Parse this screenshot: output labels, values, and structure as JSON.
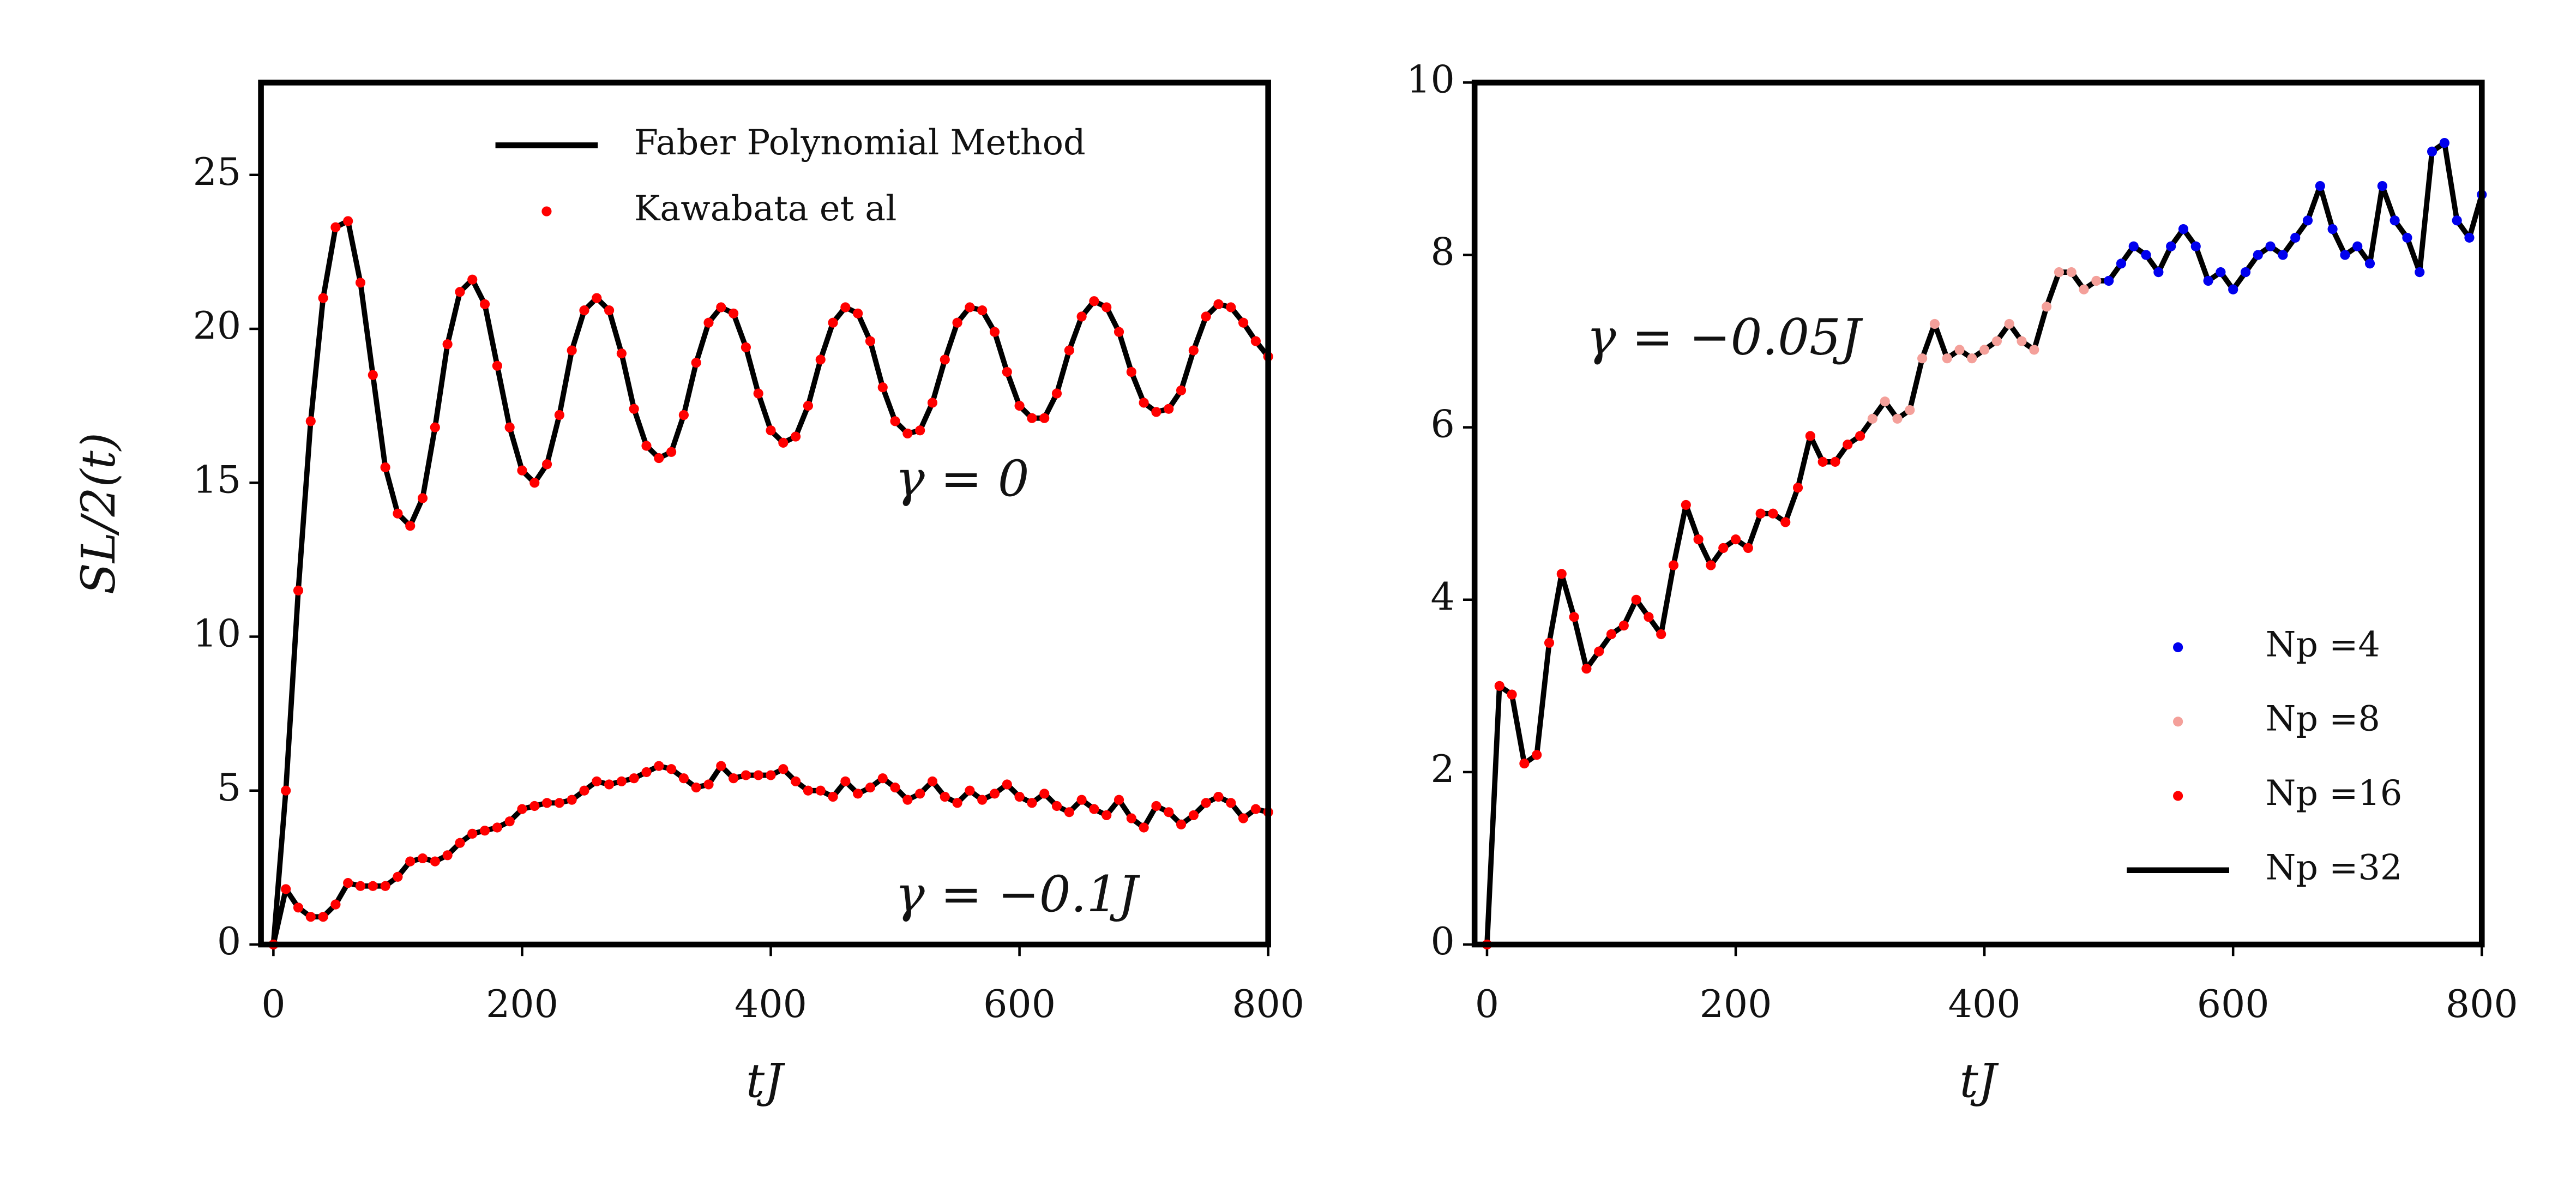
{
  "chart_data": [
    {
      "type": "line",
      "ylabel": "SL/2(t)",
      "xlabel": "tJ",
      "xlim": [
        -10,
        800
      ],
      "ylim": [
        0,
        28
      ],
      "xticks": [
        0,
        200,
        400,
        600,
        800
      ],
      "yticks": [
        0,
        5,
        10,
        15,
        20,
        25
      ],
      "legend": "upper right",
      "annotations": [
        {
          "text": "γ = 0",
          "x": 500,
          "y": 15
        },
        {
          "text": "γ = −0.1J",
          "x": 500,
          "y": 1.5
        }
      ],
      "x": [
        0,
        10,
        20,
        30,
        40,
        50,
        60,
        70,
        80,
        90,
        100,
        110,
        120,
        130,
        140,
        150,
        160,
        170,
        180,
        190,
        200,
        210,
        220,
        230,
        240,
        250,
        260,
        270,
        280,
        290,
        300,
        310,
        320,
        330,
        340,
        350,
        360,
        370,
        380,
        390,
        400,
        410,
        420,
        430,
        440,
        450,
        460,
        470,
        480,
        490,
        500,
        510,
        520,
        530,
        540,
        550,
        560,
        570,
        580,
        590,
        600,
        610,
        620,
        630,
        640,
        650,
        660,
        670,
        680,
        690,
        700,
        710,
        720,
        730,
        740,
        750,
        760,
        770,
        780,
        790,
        800
      ],
      "series": [
        {
          "name": "Faber Polynomial Method",
          "color": "#000000",
          "style": "line",
          "values": [
            0,
            5,
            11.5,
            17,
            21,
            23.3,
            23.5,
            21.5,
            18.5,
            15.5,
            14,
            13.6,
            14.5,
            16.8,
            19.5,
            21.2,
            21.6,
            20.8,
            18.8,
            16.8,
            15.4,
            15.0,
            15.6,
            17.2,
            19.3,
            20.6,
            21.0,
            20.6,
            19.2,
            17.4,
            16.2,
            15.8,
            16.0,
            17.2,
            18.9,
            20.2,
            20.7,
            20.5,
            19.4,
            17.9,
            16.7,
            16.3,
            16.5,
            17.5,
            19.0,
            20.2,
            20.7,
            20.5,
            19.6,
            18.1,
            17.0,
            16.6,
            16.7,
            17.6,
            19.0,
            20.2,
            20.7,
            20.6,
            19.9,
            18.6,
            17.5,
            17.1,
            17.1,
            17.9,
            19.3,
            20.4,
            20.9,
            20.7,
            19.9,
            18.6,
            17.6,
            17.3,
            17.4,
            18.0,
            19.3,
            20.4,
            20.8,
            20.7,
            20.2,
            19.6,
            19.1
          ]
        },
        {
          "color": "#000000",
          "style": "line",
          "values": [
            0,
            1.8,
            1.2,
            0.9,
            0.9,
            1.3,
            2.0,
            1.9,
            1.9,
            1.9,
            2.2,
            2.7,
            2.8,
            2.7,
            2.9,
            3.3,
            3.6,
            3.7,
            3.8,
            4.0,
            4.4,
            4.5,
            4.6,
            4.6,
            4.7,
            5.0,
            5.3,
            5.2,
            5.3,
            5.4,
            5.6,
            5.8,
            5.7,
            5.4,
            5.1,
            5.2,
            5.8,
            5.4,
            5.5,
            5.5,
            5.5,
            5.7,
            5.3,
            5.0,
            5.0,
            4.8,
            5.3,
            4.9,
            5.1,
            5.4,
            5.1,
            4.7,
            4.9,
            5.3,
            4.8,
            4.6,
            5.0,
            4.7,
            4.9,
            5.2,
            4.8,
            4.6,
            4.9,
            4.5,
            4.3,
            4.7,
            4.4,
            4.2,
            4.7,
            4.1,
            3.8,
            4.5,
            4.3,
            3.9,
            4.2,
            4.6,
            4.8,
            4.6,
            4.1,
            4.4,
            4.3
          ]
        },
        {
          "name": "Kawabata et al",
          "color": "#ff0000",
          "style": "dots",
          "values": [
            0,
            5,
            11.5,
            17,
            21,
            23.3,
            23.5,
            21.5,
            18.5,
            15.5,
            14,
            13.6,
            14.5,
            16.8,
            19.5,
            21.2,
            21.6,
            20.8,
            18.8,
            16.8,
            15.4,
            15.0,
            15.6,
            17.2,
            19.3,
            20.6,
            21.0,
            20.6,
            19.2,
            17.4,
            16.2,
            15.8,
            16.0,
            17.2,
            18.9,
            20.2,
            20.7,
            20.5,
            19.4,
            17.9,
            16.7,
            16.3,
            16.5,
            17.5,
            19.0,
            20.2,
            20.7,
            20.5,
            19.6,
            18.1,
            17.0,
            16.6,
            16.7,
            17.6,
            19.0,
            20.2,
            20.7,
            20.6,
            19.9,
            18.6,
            17.5,
            17.1,
            17.1,
            17.9,
            19.3,
            20.4,
            20.9,
            20.7,
            19.9,
            18.6,
            17.6,
            17.3,
            17.4,
            18.0,
            19.3,
            20.4,
            20.8,
            20.7,
            20.2,
            19.6,
            19.1
          ]
        },
        {
          "color": "#ff0000",
          "style": "dots",
          "values": [
            0,
            1.8,
            1.2,
            0.9,
            0.9,
            1.3,
            2.0,
            1.9,
            1.9,
            1.9,
            2.2,
            2.7,
            2.8,
            2.7,
            2.9,
            3.3,
            3.6,
            3.7,
            3.8,
            4.0,
            4.4,
            4.5,
            4.6,
            4.6,
            4.7,
            5.0,
            5.3,
            5.2,
            5.3,
            5.4,
            5.6,
            5.8,
            5.7,
            5.4,
            5.1,
            5.2,
            5.8,
            5.4,
            5.5,
            5.5,
            5.5,
            5.7,
            5.3,
            5.0,
            5.0,
            4.8,
            5.3,
            4.9,
            5.1,
            5.4,
            5.1,
            4.7,
            4.9,
            5.3,
            4.8,
            4.6,
            5.0,
            4.7,
            4.9,
            5.2,
            4.8,
            4.6,
            4.9,
            4.5,
            4.3,
            4.7,
            4.4,
            4.2,
            4.7,
            4.1,
            3.8,
            4.5,
            4.3,
            3.9,
            4.2,
            4.6,
            4.8,
            4.6,
            4.1,
            4.4,
            4.3
          ]
        }
      ]
    },
    {
      "type": "line",
      "xlabel": "tJ",
      "xlim": [
        -10,
        800
      ],
      "ylim": [
        0,
        10
      ],
      "xticks": [
        0,
        200,
        400,
        600,
        800
      ],
      "yticks": [
        0,
        2,
        4,
        6,
        8,
        10
      ],
      "legend": "lower right",
      "annotations": [
        {
          "text": "γ = −0.05J",
          "x": 80,
          "y": 7
        }
      ],
      "x": [
        0,
        10,
        20,
        30,
        40,
        50,
        60,
        70,
        80,
        90,
        100,
        110,
        120,
        130,
        140,
        150,
        160,
        170,
        180,
        190,
        200,
        210,
        220,
        230,
        240,
        250,
        260,
        270,
        280,
        290,
        300,
        310,
        320,
        330,
        340,
        350,
        360,
        370,
        380,
        390,
        400,
        410,
        420,
        430,
        440,
        450,
        460,
        470,
        480,
        490,
        500,
        510,
        520,
        530,
        540,
        550,
        560,
        570,
        580,
        590,
        600,
        610,
        620,
        630,
        640,
        650,
        660,
        670,
        680,
        690,
        700,
        710,
        720,
        730,
        740,
        750,
        760,
        770,
        780,
        790,
        800
      ],
      "series": [
        {
          "name": "Np =4",
          "color": "#0000ee",
          "style": "dots",
          "values": [
            null,
            null,
            null,
            null,
            null,
            null,
            null,
            null,
            null,
            null,
            null,
            null,
            null,
            null,
            null,
            null,
            null,
            null,
            null,
            null,
            null,
            null,
            null,
            null,
            null,
            null,
            null,
            null,
            null,
            null,
            null,
            null,
            null,
            null,
            null,
            null,
            null,
            null,
            null,
            null,
            null,
            null,
            null,
            null,
            null,
            null,
            null,
            null,
            null,
            null,
            7.7,
            7.9,
            8.1,
            8.0,
            7.8,
            8.1,
            8.3,
            8.1,
            7.7,
            7.8,
            7.6,
            7.8,
            8.0,
            8.1,
            8.0,
            8.2,
            8.4,
            8.8,
            8.3,
            8.0,
            8.1,
            7.9,
            8.8,
            8.4,
            8.2,
            7.8,
            9.2,
            9.3,
            8.4,
            8.2,
            8.7
          ]
        },
        {
          "name": "Np =8",
          "color": "#f4a09a",
          "style": "dots",
          "values": [
            null,
            null,
            null,
            null,
            null,
            null,
            null,
            null,
            null,
            null,
            null,
            null,
            null,
            null,
            null,
            null,
            null,
            null,
            null,
            null,
            null,
            null,
            null,
            null,
            null,
            null,
            null,
            null,
            null,
            null,
            null,
            6.1,
            6.3,
            6.1,
            6.2,
            6.8,
            7.2,
            6.8,
            6.9,
            6.8,
            6.9,
            7.0,
            7.2,
            7.0,
            6.9,
            7.4,
            7.8,
            7.8,
            7.6,
            7.7,
            null,
            null,
            null,
            null,
            null,
            null,
            null,
            null,
            null,
            null,
            null,
            null,
            null,
            null,
            null,
            null,
            null,
            null,
            null,
            null,
            null,
            null,
            null,
            null,
            null,
            null,
            null,
            null,
            null,
            null,
            null
          ]
        },
        {
          "name": "Np =16",
          "color": "#ff0000",
          "style": "dots",
          "values": [
            0,
            3.0,
            2.9,
            2.1,
            2.2,
            3.5,
            4.3,
            3.8,
            3.2,
            3.4,
            3.6,
            3.7,
            4.0,
            3.8,
            3.6,
            4.4,
            5.1,
            4.7,
            4.4,
            4.6,
            4.7,
            4.6,
            5.0,
            5.0,
            4.9,
            5.3,
            5.9,
            5.6,
            5.6,
            5.8,
            5.9,
            null,
            null,
            null,
            null,
            null,
            null,
            null,
            null,
            null,
            null,
            null,
            null,
            null,
            null,
            null,
            null,
            null,
            null,
            null,
            null,
            null,
            null,
            null,
            null,
            null,
            null,
            null,
            null,
            null,
            null,
            null,
            null,
            null,
            null,
            null,
            null,
            null,
            null,
            null,
            null,
            null,
            null,
            null,
            null,
            null,
            null,
            null,
            null,
            null,
            null
          ]
        },
        {
          "name": "Np =32",
          "color": "#000000",
          "style": "line",
          "values": [
            0,
            3.0,
            2.9,
            2.1,
            2.2,
            3.5,
            4.3,
            3.8,
            3.2,
            3.4,
            3.6,
            3.7,
            4.0,
            3.8,
            3.6,
            4.4,
            5.1,
            4.7,
            4.4,
            4.6,
            4.7,
            4.6,
            5.0,
            5.0,
            4.9,
            5.3,
            5.9,
            5.6,
            5.6,
            5.8,
            5.9,
            6.1,
            6.3,
            6.1,
            6.2,
            6.8,
            7.2,
            6.8,
            6.9,
            6.8,
            6.9,
            7.0,
            7.2,
            7.0,
            6.9,
            7.4,
            7.8,
            7.8,
            7.6,
            7.7,
            7.7,
            7.9,
            8.1,
            8.0,
            7.8,
            8.1,
            8.3,
            8.1,
            7.7,
            7.8,
            7.6,
            7.8,
            8.0,
            8.1,
            8.0,
            8.2,
            8.4,
            8.8,
            8.3,
            8.0,
            8.1,
            7.9,
            8.8,
            8.4,
            8.2,
            7.8,
            9.2,
            9.3,
            8.4,
            8.2,
            8.7
          ]
        }
      ]
    }
  ]
}
